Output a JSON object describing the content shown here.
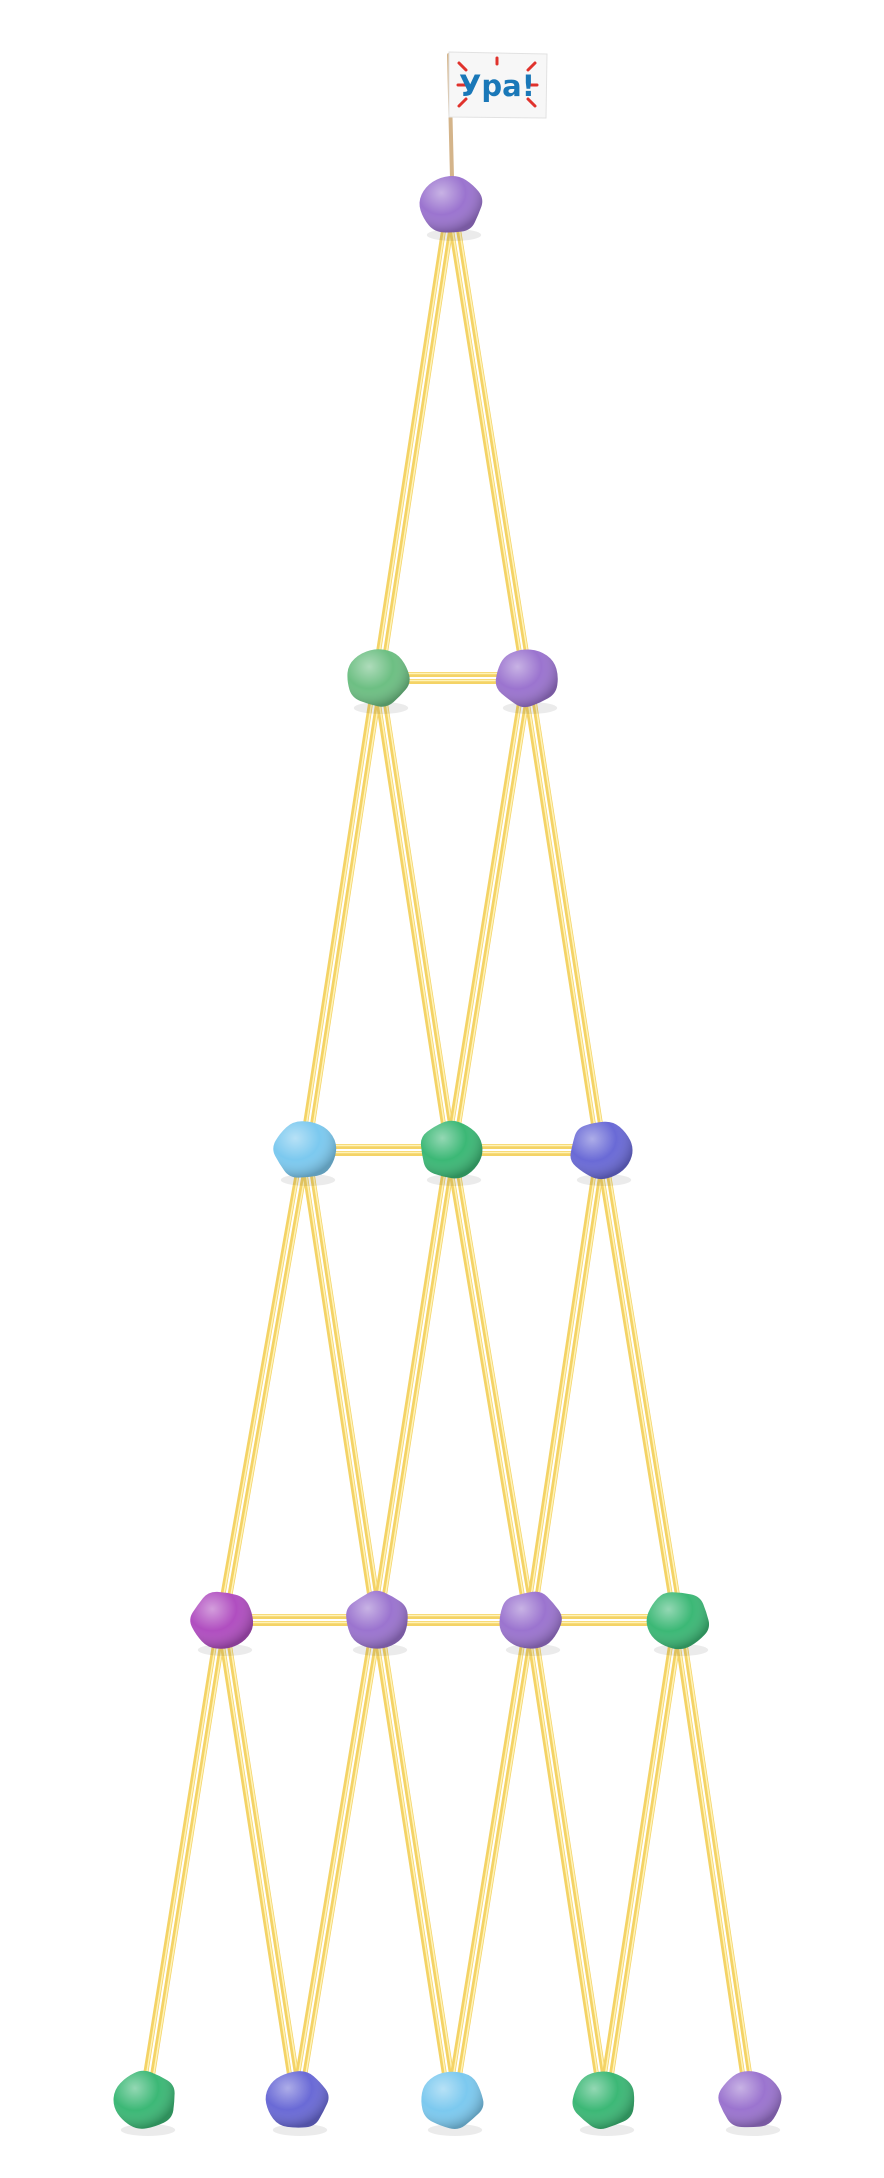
{
  "flag": {
    "label": "Ура!"
  },
  "colors": {
    "stick": "#f4d366",
    "stick_light": "#fff3b8",
    "stick_edge": "#d9ad2b",
    "flag_text": "#1a78b8",
    "flag_rays": "#e0322c",
    "flag_pole": "#d4b48a"
  },
  "clay_colors": {
    "purple": "#9b74cf",
    "green": "#3cb876",
    "sage": "#6dbf83",
    "sky": "#7cc9ef",
    "indigo": "#6a6ad6",
    "magenta": "#b04ec0"
  },
  "structure": {
    "rows": [
      {
        "name": "top",
        "balls": [
          "purple"
        ]
      },
      {
        "name": "row-2",
        "balls": [
          "sage",
          "purple"
        ]
      },
      {
        "name": "row-3",
        "balls": [
          "sky",
          "green",
          "indigo"
        ]
      },
      {
        "name": "row-4",
        "balls": [
          "magenta",
          "purple",
          "purple",
          "green"
        ]
      },
      {
        "name": "base",
        "balls": [
          "green",
          "indigo",
          "sky",
          "green",
          "purple"
        ]
      }
    ]
  }
}
